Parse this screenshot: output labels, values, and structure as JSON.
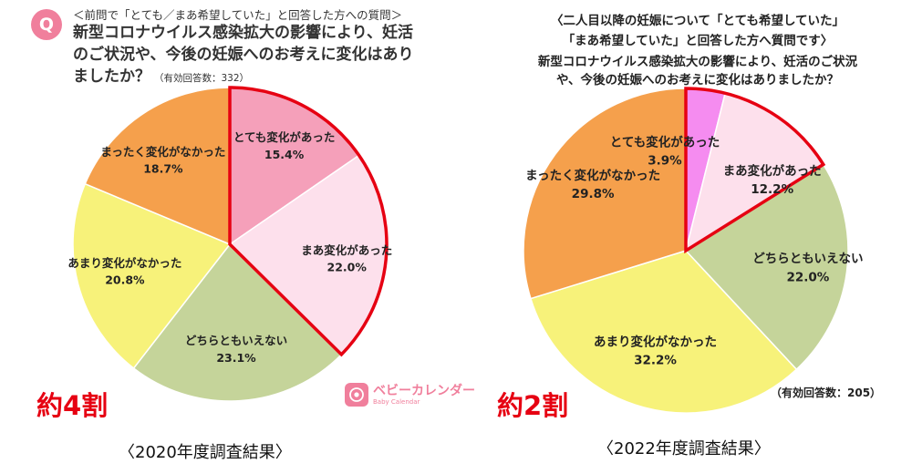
{
  "left": {
    "badge": "Q",
    "note": "＜前問で「とても／まあ希望していた」と回答した方への質問＞",
    "question": "新型コロナウイルス感染拡大の影響により、妊活のご状況や、今後の妊娠へのお考えに変化はありましたか？",
    "valid_count": "（有効回答数：332）",
    "summary": "約4割",
    "year_label": "〈2020年度調査結果〉",
    "logo_main": "ベビーカレンダー",
    "logo_sub": "Baby Calendar"
  },
  "right": {
    "note": "〈二人目以降の妊娠について「とても希望していた」\n「まあ希望していた」と回答した方へ質問です〉",
    "question": "新型コロナウイルス感染拡大の影響により、妊活のご状況\nや、今後の妊娠へのお考えに変化はありましたか？",
    "valid_count": "（有効回答数：205）",
    "summary": "約2割",
    "year_label": "〈2022年度調査結果〉"
  },
  "colors": {
    "very_changed": "#f5a0ba",
    "very_changed_2022": "#f58cf0",
    "somewhat_changed": "#fde0ec",
    "neither": "#c5d49a",
    "not_much": "#f7f27a",
    "not_at_all": "#f5a04c",
    "highlight": "#e60012"
  },
  "chart_data": [
    {
      "type": "pie",
      "title": "",
      "slices": [
        {
          "label": "とても変化があった",
          "value": 15.4,
          "display": "15.4%"
        },
        {
          "label": "まあ変化があった",
          "value": 22.0,
          "display": "22.0%"
        },
        {
          "label": "どちらともいえない",
          "value": 23.1,
          "display": "23.1%"
        },
        {
          "label": "あまり変化がなかった",
          "value": 20.8,
          "display": "20.8%"
        },
        {
          "label": "まったく変化がなかった",
          "value": 18.7,
          "display": "18.7%"
        }
      ],
      "highlighted": [
        "とても変化があった",
        "まあ変化があった"
      ]
    },
    {
      "type": "pie",
      "title": "",
      "slices": [
        {
          "label": "とても変化があった",
          "value": 3.9,
          "display": "3.9%"
        },
        {
          "label": "まあ変化があった",
          "value": 12.2,
          "display": "12.2%"
        },
        {
          "label": "どちらともいえない",
          "value": 22.0,
          "display": "22.0%"
        },
        {
          "label": "あまり変化がなかった",
          "value": 32.2,
          "display": "32.2%"
        },
        {
          "label": "まったく変化がなかった",
          "value": 29.8,
          "display": "29.8%"
        }
      ],
      "highlighted": [
        "とても変化があった",
        "まあ変化があった"
      ]
    }
  ]
}
